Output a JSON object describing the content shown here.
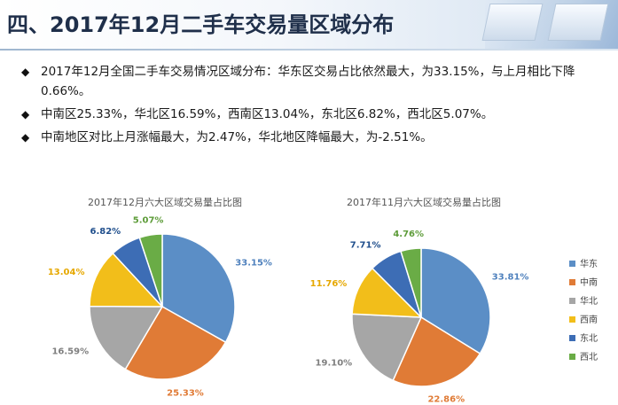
{
  "header": {
    "title": "四、2017年12月二手车交易量区域分布"
  },
  "bullets": [
    {
      "icon": "diamond-bullet",
      "text": "2017年12月全国二手车交易情况区域分布：华东区交易占比依然最大，为33.15%，与上月相比下降0.66%。"
    },
    {
      "icon": "diamond-bullet",
      "text": "中南区25.33%，华北区16.59%，西南区13.04%，东北区6.82%，西北区5.07%。"
    },
    {
      "icon": "diamond-bullet",
      "text": "中南地区对比上月涨幅最大，为2.47%，华北地区降幅最大，为-2.51%。"
    }
  ],
  "colors": {
    "华东": "#5b8ec6",
    "中南": "#e07b36",
    "华北": "#a6a6a6",
    "西南": "#f2be1a",
    "东北": "#3d6db5",
    "西北": "#6aac46"
  },
  "chart_data": [
    {
      "type": "pie",
      "title": "2017年12月六大区域交易量占比图",
      "categories": [
        "华东",
        "中南",
        "华北",
        "西南",
        "东北",
        "西北"
      ],
      "values": [
        33.15,
        25.33,
        16.59,
        13.04,
        6.82,
        5.07
      ],
      "data_labels": [
        "33.15%",
        "25.33%",
        "16.59%",
        "13.04%",
        "6.82%",
        "5.07%"
      ]
    },
    {
      "type": "pie",
      "title": "2017年11月六大区域交易量占比图",
      "categories": [
        "华东",
        "中南",
        "华北",
        "西南",
        "东北",
        "西北"
      ],
      "values": [
        33.81,
        22.86,
        19.1,
        11.76,
        7.71,
        4.76
      ],
      "data_labels": [
        "33.81%",
        "22.86%",
        "19.10%",
        "11.76%",
        "7.71%",
        "4.76%"
      ]
    }
  ],
  "legend": {
    "placement": "right",
    "items": [
      "华东",
      "中南",
      "华北",
      "西南",
      "东北",
      "西北"
    ]
  }
}
